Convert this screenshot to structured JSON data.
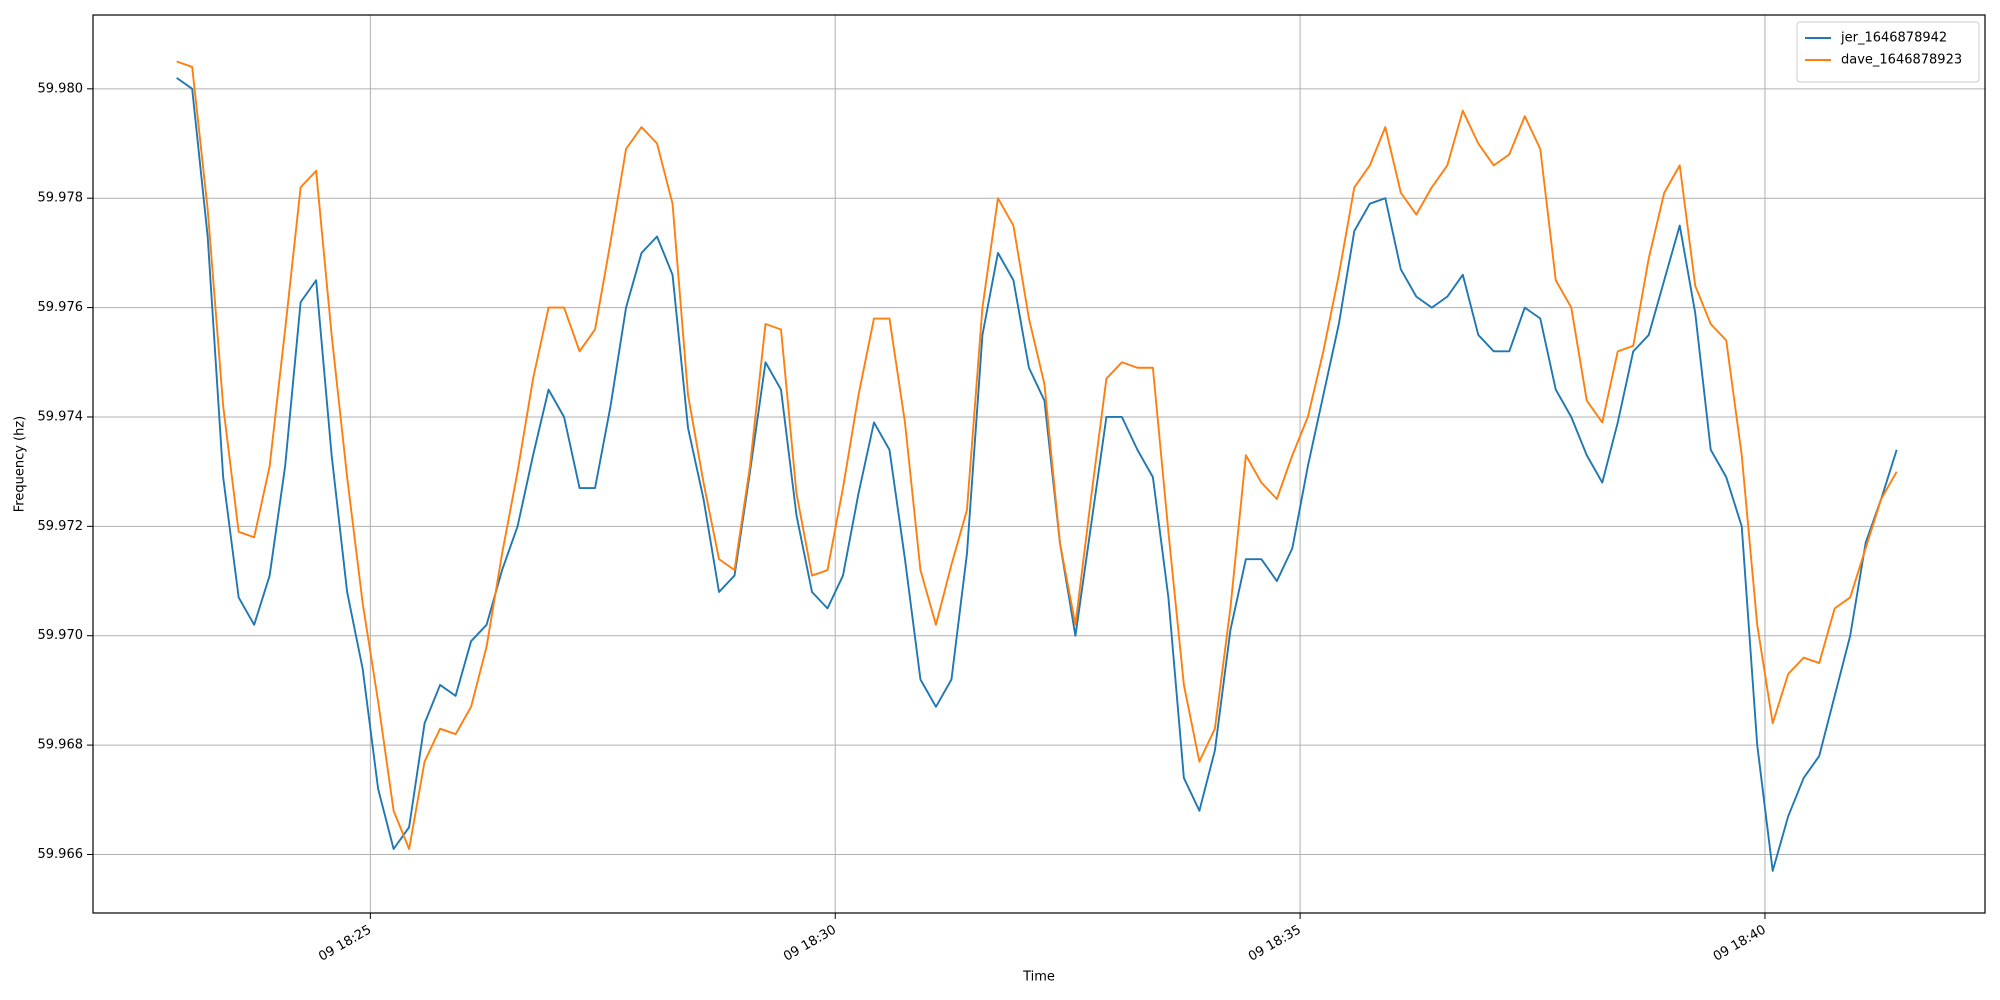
{
  "chart_data": {
    "type": "line",
    "xlabel": "Time",
    "ylabel": "Frequency (hz)",
    "x": [
      "18:22:55",
      "18:23:05",
      "18:23:15",
      "18:23:25",
      "18:23:35",
      "18:23:45",
      "18:23:55",
      "18:24:05",
      "18:24:15",
      "18:24:25",
      "18:24:35",
      "18:24:45",
      "18:24:55",
      "18:25:05",
      "18:25:15",
      "18:25:25",
      "18:25:35",
      "18:25:45",
      "18:25:55",
      "18:26:05",
      "18:26:15",
      "18:26:25",
      "18:26:35",
      "18:26:45",
      "18:26:55",
      "18:27:05",
      "18:27:15",
      "18:27:25",
      "18:27:35",
      "18:27:45",
      "18:27:55",
      "18:28:05",
      "18:28:15",
      "18:28:25",
      "18:28:35",
      "18:28:45",
      "18:28:55",
      "18:29:05",
      "18:29:15",
      "18:29:25",
      "18:29:35",
      "18:29:45",
      "18:29:55",
      "18:30:05",
      "18:30:15",
      "18:30:25",
      "18:30:35",
      "18:30:45",
      "18:30:55",
      "18:31:05",
      "18:31:15",
      "18:31:25",
      "18:31:35",
      "18:31:45",
      "18:31:55",
      "18:32:05",
      "18:32:15",
      "18:32:25",
      "18:32:35",
      "18:32:45",
      "18:32:55",
      "18:33:05",
      "18:33:15",
      "18:33:25",
      "18:33:35",
      "18:33:45",
      "18:33:55",
      "18:34:05",
      "18:34:15",
      "18:34:25",
      "18:34:35",
      "18:34:45",
      "18:34:55",
      "18:35:05",
      "18:35:15",
      "18:35:25",
      "18:35:35",
      "18:35:45",
      "18:35:55",
      "18:36:05",
      "18:36:15",
      "18:36:25",
      "18:36:35",
      "18:36:45",
      "18:36:55",
      "18:37:05",
      "18:37:15",
      "18:37:25",
      "18:37:35",
      "18:37:45",
      "18:37:55",
      "18:38:05",
      "18:38:15",
      "18:38:25",
      "18:38:35",
      "18:38:45",
      "18:38:55",
      "18:39:05",
      "18:39:15",
      "18:39:25",
      "18:39:35",
      "18:39:45",
      "18:39:55",
      "18:40:05",
      "18:40:15",
      "18:40:25",
      "18:40:35",
      "18:40:45",
      "18:40:55",
      "18:41:05",
      "18:41:15",
      "18:41:25"
    ],
    "series": [
      {
        "name": "jer_1646878942",
        "color": "#1f77b4",
        "values": [
          59.9802,
          59.98,
          59.9773,
          59.9729,
          59.9707,
          59.9702,
          59.9711,
          59.9731,
          59.9761,
          59.9765,
          59.9733,
          59.9708,
          59.9694,
          59.9672,
          59.9661,
          59.9665,
          59.9684,
          59.9691,
          59.9689,
          59.9699,
          59.9702,
          59.9712,
          59.972,
          59.9733,
          59.9745,
          59.974,
          59.9727,
          59.9727,
          59.9742,
          59.976,
          59.977,
          59.9773,
          59.9766,
          59.9738,
          59.9725,
          59.9708,
          59.9711,
          59.973,
          59.975,
          59.9745,
          59.9722,
          59.9708,
          59.9705,
          59.9711,
          59.9726,
          59.9739,
          59.9734,
          59.9714,
          59.9692,
          59.9687,
          59.9692,
          59.9715,
          59.9755,
          59.977,
          59.9765,
          59.9749,
          59.9743,
          59.9717,
          59.97,
          59.972,
          59.974,
          59.974,
          59.9734,
          59.9729,
          59.9707,
          59.9674,
          59.9668,
          59.9679,
          59.9701,
          59.9714,
          59.9714,
          59.971,
          59.9716,
          59.9731,
          59.9744,
          59.9757,
          59.9774,
          59.9779,
          59.978,
          59.9767,
          59.9762,
          59.976,
          59.9762,
          59.9766,
          59.9755,
          59.9752,
          59.9752,
          59.976,
          59.9758,
          59.9745,
          59.974,
          59.9733,
          59.9728,
          59.9739,
          59.9752,
          59.9755,
          59.9765,
          59.9775,
          59.9759,
          59.9734,
          59.9729,
          59.972,
          59.968,
          59.9657,
          59.9667,
          59.9674,
          59.9678,
          59.9689,
          59.97,
          59.9717,
          59.9725,
          59.9734
        ]
      },
      {
        "name": "dave_1646878923",
        "color": "#ff7f0e",
        "values": [
          59.9805,
          59.9804,
          59.9778,
          59.9742,
          59.9719,
          59.9718,
          59.9731,
          59.9756,
          59.9782,
          59.9785,
          59.9755,
          59.9729,
          59.9706,
          59.9688,
          59.9668,
          59.9661,
          59.9677,
          59.9683,
          59.9682,
          59.9687,
          59.9698,
          59.9715,
          59.973,
          59.9747,
          59.976,
          59.976,
          59.9752,
          59.9756,
          59.9772,
          59.9789,
          59.9793,
          59.979,
          59.9779,
          59.9744,
          59.9728,
          59.9714,
          59.9712,
          59.9731,
          59.9757,
          59.9756,
          59.9726,
          59.9711,
          59.9712,
          59.9727,
          59.9744,
          59.9758,
          59.9758,
          59.9739,
          59.9712,
          59.9702,
          59.9713,
          59.9723,
          59.976,
          59.978,
          59.9775,
          59.9758,
          59.9746,
          59.9717,
          59.9702,
          59.9725,
          59.9747,
          59.975,
          59.9749,
          59.9749,
          59.9719,
          59.9691,
          59.9677,
          59.9683,
          59.9705,
          59.9733,
          59.9728,
          59.9725,
          59.9733,
          59.974,
          59.9752,
          59.9766,
          59.9782,
          59.9786,
          59.9793,
          59.9781,
          59.9777,
          59.9782,
          59.9786,
          59.9796,
          59.979,
          59.9786,
          59.9788,
          59.9795,
          59.9789,
          59.9765,
          59.976,
          59.9743,
          59.9739,
          59.9752,
          59.9753,
          59.9769,
          59.9781,
          59.9786,
          59.9764,
          59.9757,
          59.9754,
          59.9733,
          59.9702,
          59.9684,
          59.9693,
          59.9696,
          59.9695,
          59.9705,
          59.9707,
          59.9716,
          59.9725,
          59.973
        ]
      }
    ],
    "xlim": [
      "18:22:01",
      "18:42:22"
    ],
    "xticks": [
      {
        "value": "18:25:00",
        "label": "09 18:25"
      },
      {
        "value": "18:30:00",
        "label": "09 18:30"
      },
      {
        "value": "18:35:00",
        "label": "09 18:35"
      },
      {
        "value": "18:40:00",
        "label": "09 18:40"
      }
    ],
    "ylim": [
      59.96493,
      59.98135
    ],
    "yticks": [
      59.966,
      59.968,
      {
        "value": 59.97,
        "label": "59.970"
      },
      59.972,
      59.974,
      59.976,
      59.978,
      {
        "value": 59.98,
        "label": "59.980"
      }
    ],
    "grid": true,
    "legend": "upper right"
  }
}
